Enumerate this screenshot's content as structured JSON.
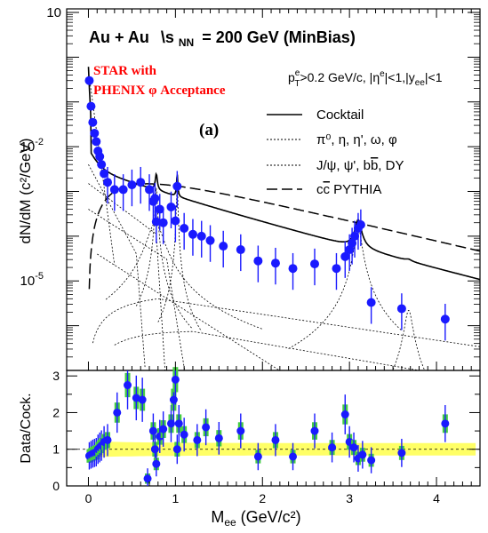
{
  "chart_data": [
    {
      "type": "scatter",
      "title": "Au + Au  \\sNN = 200 GeV (MinBias)",
      "title_parts": {
        "system": "Au + Au",
        "sqrt": "\\s",
        "nn_sub": "NN",
        "energy": "= 200 GeV (MinBias)"
      },
      "annotation_star": [
        "STAR with",
        "PHENIX  φ Acceptance"
      ],
      "panel_label": "(a)",
      "cuts": {
        "pt": "p",
        "pt_sup": "e",
        "pt_sub": "T",
        "pt_val": ">0.2 GeV/c, |η",
        "eta_sup": "e",
        "eta_val": "|<1,|y",
        "y_sub": "ee",
        "y_val": "|<1"
      },
      "ylabel": "dN/dM (c²/GeV)",
      "yscale": "log",
      "xlim": [
        -0.25,
        4.5
      ],
      "ylim": [
        1e-07,
        12
      ],
      "ytick_labels": [
        {
          "value": 10,
          "label": "10"
        },
        {
          "value": 0.01,
          "label": "10",
          "exp": "-2"
        },
        {
          "value": 1e-05,
          "label": "10",
          "exp": "-5"
        }
      ],
      "legend": [
        {
          "label": "Cocktail",
          "style": "solid"
        },
        {
          "label": "π⁰, η, η', ω, φ",
          "style": "dotted"
        },
        {
          "label": "J/ψ, ψ', b",
          "label_over": "b",
          "label_tail": ", DY",
          "style": "dotted"
        },
        {
          "label": "c",
          "label_over": "c",
          "label_tail": " PYTHIA",
          "style": "dashed"
        }
      ],
      "marker_color": "#1a1aff",
      "data_points": [
        [
          0.01,
          0.3
        ],
        [
          0.03,
          0.08
        ],
        [
          0.05,
          0.035
        ],
        [
          0.07,
          0.02
        ],
        [
          0.09,
          0.013
        ],
        [
          0.11,
          0.008
        ],
        [
          0.13,
          0.006
        ],
        [
          0.15,
          0.004
        ],
        [
          0.18,
          0.0025
        ],
        [
          0.22,
          0.0016
        ],
        [
          0.3,
          0.0011
        ],
        [
          0.4,
          0.0011
        ],
        [
          0.5,
          0.0014
        ],
        [
          0.6,
          0.0016
        ],
        [
          0.7,
          0.0011
        ],
        [
          0.745,
          0.0006
        ],
        [
          0.765,
          0.0007
        ],
        [
          0.78,
          0.00021
        ],
        [
          0.82,
          0.0004
        ],
        [
          0.86,
          0.0002
        ],
        [
          0.95,
          0.00045
        ],
        [
          1.0,
          0.00022
        ],
        [
          1.02,
          0.0013
        ],
        [
          1.1,
          0.00015
        ],
        [
          1.2,
          0.00011
        ],
        [
          1.3,
          0.0001
        ],
        [
          1.4,
          8e-05
        ],
        [
          1.55,
          6e-05
        ],
        [
          1.75,
          5e-05
        ],
        [
          1.95,
          2.8e-05
        ],
        [
          2.15,
          2.5e-05
        ],
        [
          2.35,
          1.9e-05
        ],
        [
          2.6,
          2.4e-05
        ],
        [
          2.85,
          1.9e-05
        ],
        [
          2.95,
          3.5e-05
        ],
        [
          3.0,
          5e-05
        ],
        [
          3.03,
          7e-05
        ],
        [
          3.06,
          0.0001
        ],
        [
          3.1,
          0.00015
        ],
        [
          3.13,
          0.00018
        ],
        [
          3.25,
          3.3e-06
        ],
        [
          3.6,
          2.4e-06
        ],
        [
          4.1,
          1.4e-06
        ]
      ]
    },
    {
      "type": "scatter",
      "ylabel": "Data/Cock.",
      "xlabel": "M",
      "xlabel_sub": "ee",
      "xlabel_unit": " (GeV/c²)",
      "xlim": [
        -0.25,
        4.5
      ],
      "ylim": [
        0,
        3.15
      ],
      "yticks": [
        "0",
        "1",
        "2",
        "3"
      ],
      "xticks": [
        "0",
        "1",
        "2",
        "3",
        "4"
      ],
      "band_color": "#ffff66",
      "syst_color": "#44cc44",
      "ratio_points": [
        [
          0.01,
          0.82
        ],
        [
          0.03,
          0.85
        ],
        [
          0.05,
          0.88
        ],
        [
          0.07,
          0.9
        ],
        [
          0.09,
          0.92
        ],
        [
          0.11,
          1.0
        ],
        [
          0.13,
          1.05
        ],
        [
          0.15,
          1.1
        ],
        [
          0.18,
          1.2
        ],
        [
          0.22,
          1.25
        ],
        [
          0.33,
          2.0
        ],
        [
          0.45,
          2.75
        ],
        [
          0.55,
          2.4
        ],
        [
          0.62,
          2.35
        ],
        [
          0.68,
          0.2
        ],
        [
          0.745,
          1.5
        ],
        [
          0.765,
          1.0
        ],
        [
          0.78,
          0.6
        ],
        [
          0.82,
          1.35
        ],
        [
          0.86,
          1.55
        ],
        [
          0.95,
          1.7
        ],
        [
          0.98,
          2.35
        ],
        [
          1.0,
          2.9
        ],
        [
          1.02,
          1.0
        ],
        [
          1.04,
          1.7
        ],
        [
          1.1,
          1.4
        ],
        [
          1.25,
          1.25
        ],
        [
          1.35,
          1.6
        ],
        [
          1.5,
          1.3
        ],
        [
          1.75,
          1.5
        ],
        [
          1.95,
          0.8
        ],
        [
          2.15,
          1.25
        ],
        [
          2.35,
          0.8
        ],
        [
          2.6,
          1.5
        ],
        [
          2.8,
          1.05
        ],
        [
          2.95,
          1.95
        ],
        [
          3.0,
          1.2
        ],
        [
          3.05,
          1.05
        ],
        [
          3.1,
          0.75
        ],
        [
          3.15,
          0.85
        ],
        [
          3.25,
          0.7
        ],
        [
          3.6,
          0.9
        ],
        [
          4.1,
          1.7
        ]
      ]
    }
  ]
}
